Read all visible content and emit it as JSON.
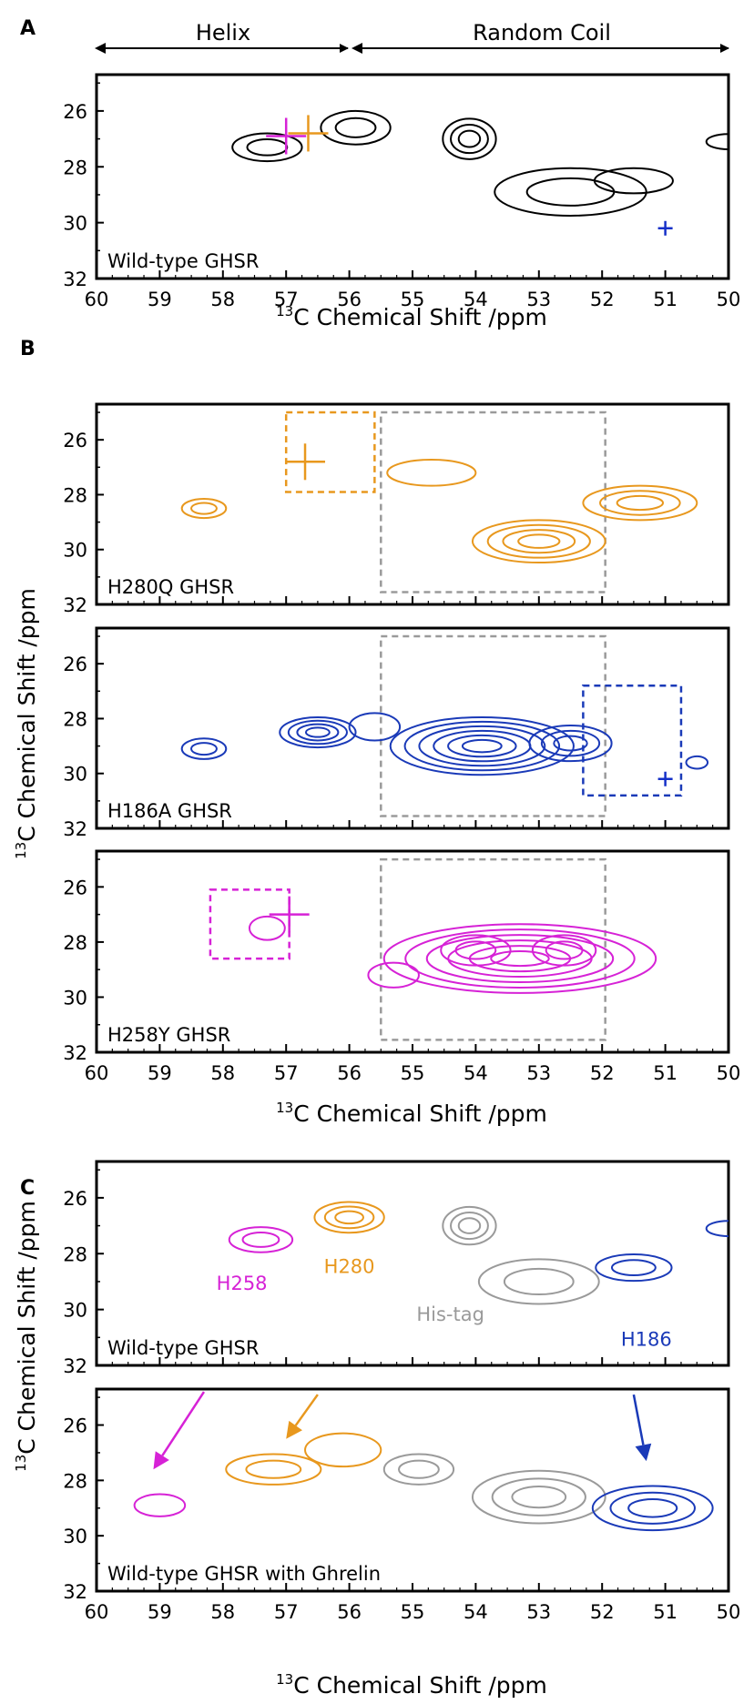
{
  "figure": {
    "panel_A_letter": "A",
    "panel_B_letter": "B",
    "panel_C_letter": "C",
    "region_helix": "Helix",
    "region_random_coil": "Random Coil",
    "xlabel_A": "13C Chemical Shift /ppm",
    "xlabel_B": "13C Chemical Shift /ppm",
    "xlabel_C": "13C Chemical Shift /ppm",
    "ylabel_B": "13C Chemical Shift /ppm",
    "ylabel_C": "13C Chemical Shift /ppm",
    "x_ticks": [
      60,
      59,
      58,
      57,
      56,
      55,
      54,
      53,
      52,
      51,
      50
    ],
    "y_ticks": [
      26,
      28,
      30,
      32
    ],
    "xlim": [
      60,
      50
    ],
    "ylim": [
      24.7,
      32
    ],
    "colors": {
      "black": "#000000",
      "orange": "#E8981E",
      "blue": "#1A3AB8",
      "magenta": "#D622D6",
      "gray": "#9A9A9A",
      "blue_marker": "#1530C8"
    }
  },
  "chart_data": [
    {
      "type": "scatter",
      "panel": "A",
      "label": "Wild-type GHSR",
      "xlim": [
        60,
        50
      ],
      "ylim": [
        24.7,
        32
      ],
      "peaks": [
        {
          "color": "black",
          "x": 57.3,
          "y": 27.3,
          "rx": 0.55,
          "ry": 1.0,
          "levels": 2
        },
        {
          "color": "black",
          "x": 55.9,
          "y": 26.6,
          "rx": 0.55,
          "ry": 1.2,
          "levels": 2
        },
        {
          "color": "black",
          "x": 54.1,
          "y": 27.0,
          "rx": 0.42,
          "ry": 1.45,
          "levels": 3
        },
        {
          "color": "black",
          "x": 52.5,
          "y": 28.9,
          "rx": 1.2,
          "ry": 1.7,
          "levels": 2
        },
        {
          "color": "black",
          "x": 51.5,
          "y": 28.5,
          "rx": 0.62,
          "ry": 0.9,
          "levels": 1
        },
        {
          "color": "black",
          "x": 50.0,
          "y": 27.1,
          "rx": 0.35,
          "ry": 0.55,
          "levels": 1
        }
      ],
      "crosses": [
        {
          "color": "magenta",
          "x": 57.0,
          "y": 26.9
        },
        {
          "color": "orange",
          "x": 56.65,
          "y": 26.8
        },
        {
          "color": "blue_marker",
          "x": 51.0,
          "y": 30.2
        }
      ],
      "boxes": []
    },
    {
      "type": "scatter",
      "panel": "B1",
      "label": "H280Q GHSR",
      "xlim": [
        60,
        50
      ],
      "ylim": [
        24.7,
        32
      ],
      "peaks": [
        {
          "color": "orange",
          "x": 58.3,
          "y": 28.5,
          "rx": 0.35,
          "ry": 0.7,
          "levels": 2
        },
        {
          "color": "orange",
          "x": 54.7,
          "y": 27.2,
          "rx": 0.7,
          "ry": 0.95,
          "levels": 1
        },
        {
          "color": "orange",
          "x": 53.0,
          "y": 29.7,
          "rx": 1.05,
          "ry": 1.55,
          "levels": 4
        },
        {
          "color": "orange",
          "x": 51.4,
          "y": 28.3,
          "rx": 0.9,
          "ry": 1.25,
          "levels": 3
        }
      ],
      "crosses": [
        {
          "color": "orange",
          "x": 56.7,
          "y": 26.8
        }
      ],
      "boxes": [
        {
          "color": "orange",
          "x0": 57.0,
          "x1": 55.6,
          "y0": 25.0,
          "y1": 27.9
        },
        {
          "color": "gray",
          "x0": 55.5,
          "x1": 51.95,
          "y0": 25.0,
          "y1": 31.55
        }
      ]
    },
    {
      "type": "scatter",
      "panel": "B2",
      "label": "H186A GHSR",
      "xlim": [
        60,
        50
      ],
      "ylim": [
        24.7,
        32
      ],
      "peaks": [
        {
          "color": "blue",
          "x": 58.3,
          "y": 29.1,
          "rx": 0.35,
          "ry": 0.75,
          "levels": 2
        },
        {
          "color": "blue",
          "x": 56.5,
          "y": 28.5,
          "rx": 0.6,
          "ry": 1.1,
          "levels": 4
        },
        {
          "color": "blue",
          "x": 55.6,
          "y": 28.3,
          "rx": 0.4,
          "ry": 1.0,
          "levels": 1
        },
        {
          "color": "blue",
          "x": 53.9,
          "y": 29.0,
          "rx": 1.45,
          "ry": 2.1,
          "levels": 6
        },
        {
          "color": "blue",
          "x": 52.5,
          "y": 28.9,
          "rx": 0.65,
          "ry": 1.3,
          "levels": 3
        },
        {
          "color": "blue",
          "x": 50.5,
          "y": 29.6,
          "rx": 0.17,
          "ry": 0.45,
          "levels": 1
        }
      ],
      "crosses": [
        {
          "color": "blue_marker",
          "x": 51.0,
          "y": 30.2
        }
      ],
      "boxes": [
        {
          "color": "gray",
          "x0": 55.5,
          "x1": 51.95,
          "y0": 25.0,
          "y1": 31.55
        },
        {
          "color": "blue",
          "x0": 52.3,
          "x1": 50.75,
          "y0": 26.8,
          "y1": 30.8
        }
      ]
    },
    {
      "type": "scatter",
      "panel": "B3",
      "label": "H258Y GHSR",
      "xlim": [
        60,
        50
      ],
      "ylim": [
        24.7,
        32
      ],
      "peaks": [
        {
          "color": "magenta",
          "x": 57.3,
          "y": 27.5,
          "rx": 0.28,
          "ry": 0.85,
          "levels": 1
        },
        {
          "color": "magenta",
          "x": 53.3,
          "y": 28.6,
          "rx": 2.15,
          "ry": 2.5,
          "levels": 6
        },
        {
          "color": "magenta",
          "x": 55.3,
          "y": 29.2,
          "rx": 0.4,
          "ry": 0.9,
          "levels": 1
        },
        {
          "color": "magenta",
          "x": 54.0,
          "y": 28.3,
          "rx": 0.55,
          "ry": 1.1,
          "levels": 2
        },
        {
          "color": "magenta",
          "x": 52.6,
          "y": 28.3,
          "rx": 0.5,
          "ry": 1.1,
          "levels": 2
        }
      ],
      "crosses": [
        {
          "color": "magenta",
          "x": 56.95,
          "y": 27.0
        }
      ],
      "boxes": [
        {
          "color": "magenta",
          "x0": 58.2,
          "x1": 56.95,
          "y0": 26.1,
          "y1": 28.6
        },
        {
          "color": "gray",
          "x0": 55.5,
          "x1": 51.95,
          "y0": 25.0,
          "y1": 31.55
        }
      ]
    },
    {
      "type": "scatter",
      "panel": "C1",
      "label": "Wild-type GHSR",
      "xlim": [
        60,
        50
      ],
      "ylim": [
        24.7,
        32
      ],
      "peaks": [
        {
          "color": "magenta",
          "x": 57.4,
          "y": 27.5,
          "rx": 0.5,
          "ry": 0.9,
          "levels": 2
        },
        {
          "color": "orange",
          "x": 56.0,
          "y": 26.7,
          "rx": 0.55,
          "ry": 1.1,
          "levels": 3
        },
        {
          "color": "gray",
          "x": 54.1,
          "y": 27.0,
          "rx": 0.42,
          "ry": 1.35,
          "levels": 3
        },
        {
          "color": "gray",
          "x": 53.0,
          "y": 29.0,
          "rx": 0.95,
          "ry": 1.6,
          "levels": 2
        },
        {
          "color": "blue",
          "x": 51.5,
          "y": 28.5,
          "rx": 0.6,
          "ry": 0.95,
          "levels": 2
        },
        {
          "color": "blue",
          "x": 50.0,
          "y": 27.1,
          "rx": 0.35,
          "ry": 0.55,
          "levels": 1
        }
      ],
      "annotations": [
        {
          "text": "H258",
          "color": "magenta",
          "x": 57.7,
          "y": 29.3
        },
        {
          "text": "H280",
          "color": "orange",
          "x": 56.0,
          "y": 28.7
        },
        {
          "text": "His-tag",
          "color": "gray",
          "x": 54.4,
          "y": 30.4
        },
        {
          "text": "H186",
          "color": "blue",
          "x": 51.3,
          "y": 31.3
        }
      ],
      "crosses": [],
      "boxes": []
    },
    {
      "type": "scatter",
      "panel": "C2",
      "label": "Wild-type GHSR with Ghrelin",
      "xlim": [
        60,
        50
      ],
      "ylim": [
        24.7,
        32
      ],
      "peaks": [
        {
          "color": "magenta",
          "x": 59.0,
          "y": 28.9,
          "rx": 0.4,
          "ry": 0.8,
          "levels": 1
        },
        {
          "color": "orange",
          "x": 57.2,
          "y": 27.6,
          "rx": 0.75,
          "ry": 1.1,
          "levels": 2
        },
        {
          "color": "orange",
          "x": 56.1,
          "y": 26.9,
          "rx": 0.6,
          "ry": 1.2,
          "levels": 1
        },
        {
          "color": "gray",
          "x": 54.9,
          "y": 27.6,
          "rx": 0.55,
          "ry": 1.1,
          "levels": 2
        },
        {
          "color": "gray",
          "x": 53.0,
          "y": 28.6,
          "rx": 1.05,
          "ry": 1.9,
          "levels": 3
        },
        {
          "color": "blue",
          "x": 51.2,
          "y": 29.0,
          "rx": 0.95,
          "ry": 1.6,
          "levels": 3
        }
      ],
      "arrows": [
        {
          "color": "magenta",
          "x1": 58.3,
          "y1": 24.8,
          "x2": 59.1,
          "y2": 27.6
        },
        {
          "color": "orange",
          "x1": 56.5,
          "y1": 24.9,
          "x2": 57.0,
          "y2": 26.5
        },
        {
          "color": "blue",
          "x1": 51.5,
          "y1": 24.9,
          "x2": 51.3,
          "y2": 27.3
        }
      ],
      "crosses": [],
      "boxes": []
    }
  ]
}
